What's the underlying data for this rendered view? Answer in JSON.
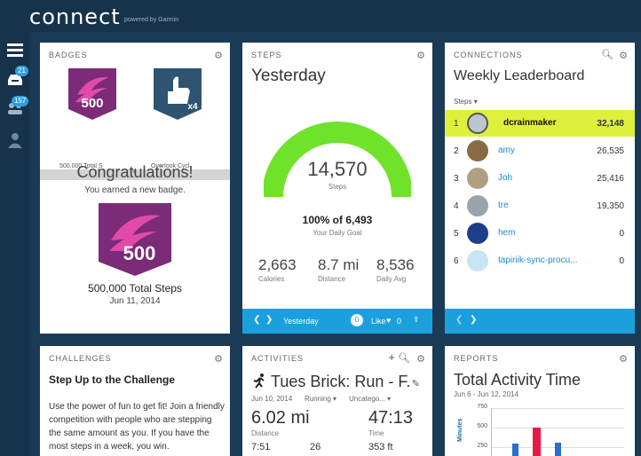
{
  "app": {
    "logo": "connect",
    "logo_sub": "powered by Garmin"
  },
  "sidebar": {
    "inbox_count": "21",
    "connections_count": "157"
  },
  "badges": {
    "header": "BADGES",
    "badge1_sub": "500,000 Total S",
    "badge2_sub": "Overlook Cycl",
    "badge_number": "500",
    "badge2_count": "x4",
    "congrats_title": "Congratulations!",
    "congrats_sub": "You earned a new badge.",
    "badge_name": "500,000 Total Steps",
    "badge_date": "Jun 11, 2014"
  },
  "steps": {
    "header": "STEPS",
    "title": "Yesterday",
    "count": "14,570",
    "count_label": "Steps",
    "goal": "100% of 6,493",
    "goal_label": "Your Daily Goal",
    "goal_fraction": 1.0,
    "stats": [
      {
        "value": "2,663",
        "label": "Calories"
      },
      {
        "value": "8.7 mi",
        "label": "Distance"
      },
      {
        "value": "8,536",
        "label": "Daily Avg"
      }
    ],
    "footer_label": "Yesterday",
    "comments": "0",
    "like_label": "Like",
    "likes": "0"
  },
  "connections": {
    "header": "CONNECTIONS",
    "title": "Weekly Leaderboard",
    "sort_label": "Steps",
    "rows": [
      {
        "rank": "1",
        "name": "dcrainmaker",
        "value": "32,148"
      },
      {
        "rank": "2",
        "name": "amy",
        "value": "26,535"
      },
      {
        "rank": "3",
        "name": "Joh",
        "value": "25,416"
      },
      {
        "rank": "4",
        "name": "tre",
        "value": "19,350"
      },
      {
        "rank": "5",
        "name": "hem",
        "value": "0"
      },
      {
        "rank": "6",
        "name": "tapiriik-sync-procu...",
        "value": "0"
      }
    ]
  },
  "challenges": {
    "header": "CHALLENGES",
    "title": "Step Up to the Challenge",
    "text": "Use the power of fun to get fit! Join a friendly competition with people who are stepping the same amount as you. If you have the most steps in a week, you win."
  },
  "activities": {
    "header": "ACTIVITIES",
    "title": "Tues Brick: Run - F.",
    "date": "Jun 10, 2014",
    "type": "Running",
    "category": "Uncatego...",
    "distance": "6.02 mi",
    "distance_label": "Distance",
    "time": "47:13",
    "time_label": "Time",
    "pace": "7:51",
    "cadence": "26",
    "elevation": "353 ft"
  },
  "reports": {
    "header": "REPORTS",
    "title": "Total Activity Time",
    "date_range": "Jun 6 - Jun 12, 2014",
    "ylabel": "Minutes",
    "ticks": [
      "750",
      "500",
      "250"
    ]
  },
  "colors": {
    "accent_blue": "#1aa0dd",
    "gauge_green": "#6fe22a",
    "highlight": "#ddf03c",
    "badge_purple": "#7b2b77"
  }
}
